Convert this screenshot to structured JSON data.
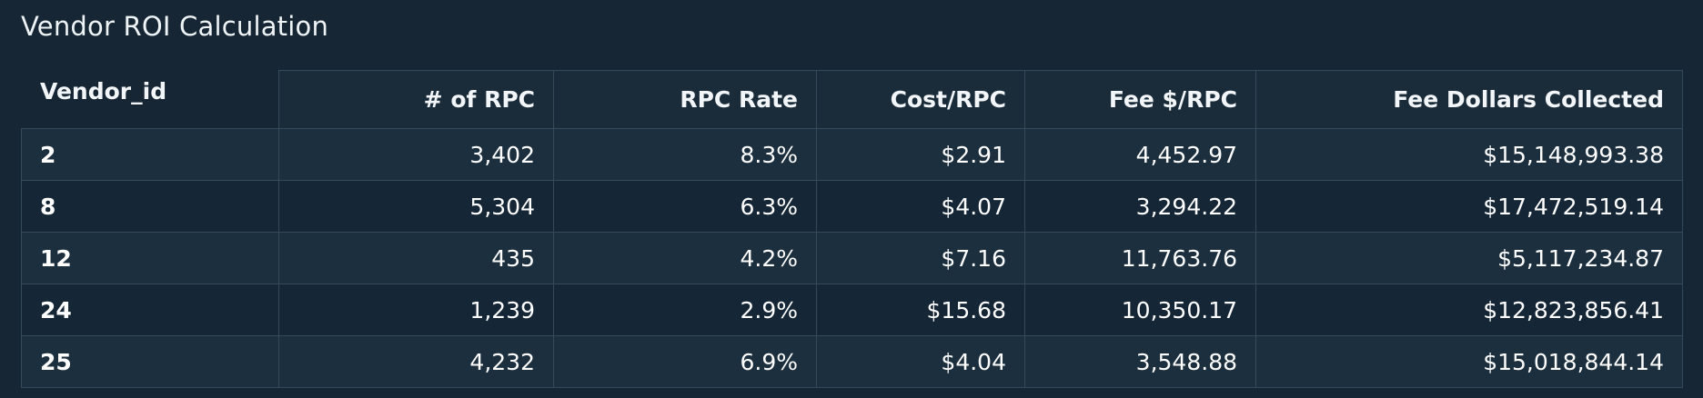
{
  "widget": {
    "title": "Vendor ROI Calculation"
  },
  "table": {
    "columns": [
      "Vendor_id",
      "# of RPC",
      "RPC Rate",
      "Cost/RPC",
      "Fee $/RPC",
      "Fee Dollars Collected"
    ],
    "rows": [
      [
        "2",
        "3,402",
        "8.3%",
        "$2.91",
        "4,452.97",
        "$15,148,993.38"
      ],
      [
        "8",
        "5,304",
        "6.3%",
        "$4.07",
        "3,294.22",
        "$17,472,519.14"
      ],
      [
        "12",
        "435",
        "4.2%",
        "$7.16",
        "11,763.76",
        "$5,117,234.87"
      ],
      [
        "24",
        "1,239",
        "2.9%",
        "$15.68",
        "10,350.17",
        "$12,823,856.41"
      ],
      [
        "25",
        "4,232",
        "6.9%",
        "$4.04",
        "3,548.88",
        "$15,018,844.14"
      ]
    ]
  },
  "colors": {
    "background": "#162634",
    "border": "#34495a",
    "text": "#ffffff"
  }
}
